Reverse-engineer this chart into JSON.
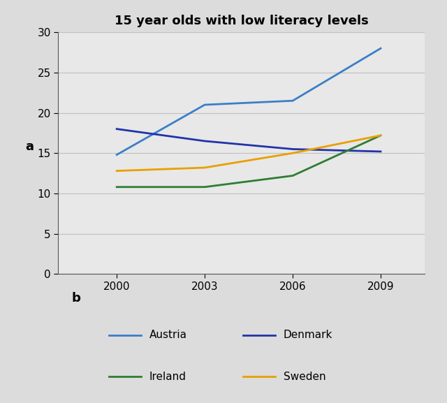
{
  "title": "15 year olds with low literacy levels",
  "years": [
    2000,
    2003,
    2006,
    2009
  ],
  "series": {
    "Austria": {
      "values": [
        14.8,
        21.0,
        21.5,
        28.0
      ],
      "color": "#3C7EC8"
    },
    "Denmark": {
      "values": [
        18.0,
        16.5,
        15.5,
        15.2
      ],
      "color": "#2233AA"
    },
    "Ireland": {
      "values": [
        10.8,
        10.8,
        12.2,
        17.2
      ],
      "color": "#2E7D32"
    },
    "Sweden": {
      "values": [
        12.8,
        13.2,
        15.0,
        17.2
      ],
      "color": "#E8A000"
    }
  },
  "ylim": [
    0,
    30
  ],
  "yticks": [
    0,
    5,
    10,
    15,
    20,
    25,
    30
  ],
  "xticks": [
    2000,
    2003,
    2006,
    2009
  ],
  "xlim": [
    1998.0,
    2010.5
  ],
  "ylabel": "a",
  "xlabel_below": "b",
  "background_color": "#DCDCDC",
  "plot_bg_color": "#E8E8E8",
  "grid_color": "#C0C0C0",
  "title_fontsize": 13,
  "axis_fontsize": 11,
  "legend_fontsize": 11,
  "linewidth": 2.0,
  "green_bar_color": "#5A9E5A"
}
